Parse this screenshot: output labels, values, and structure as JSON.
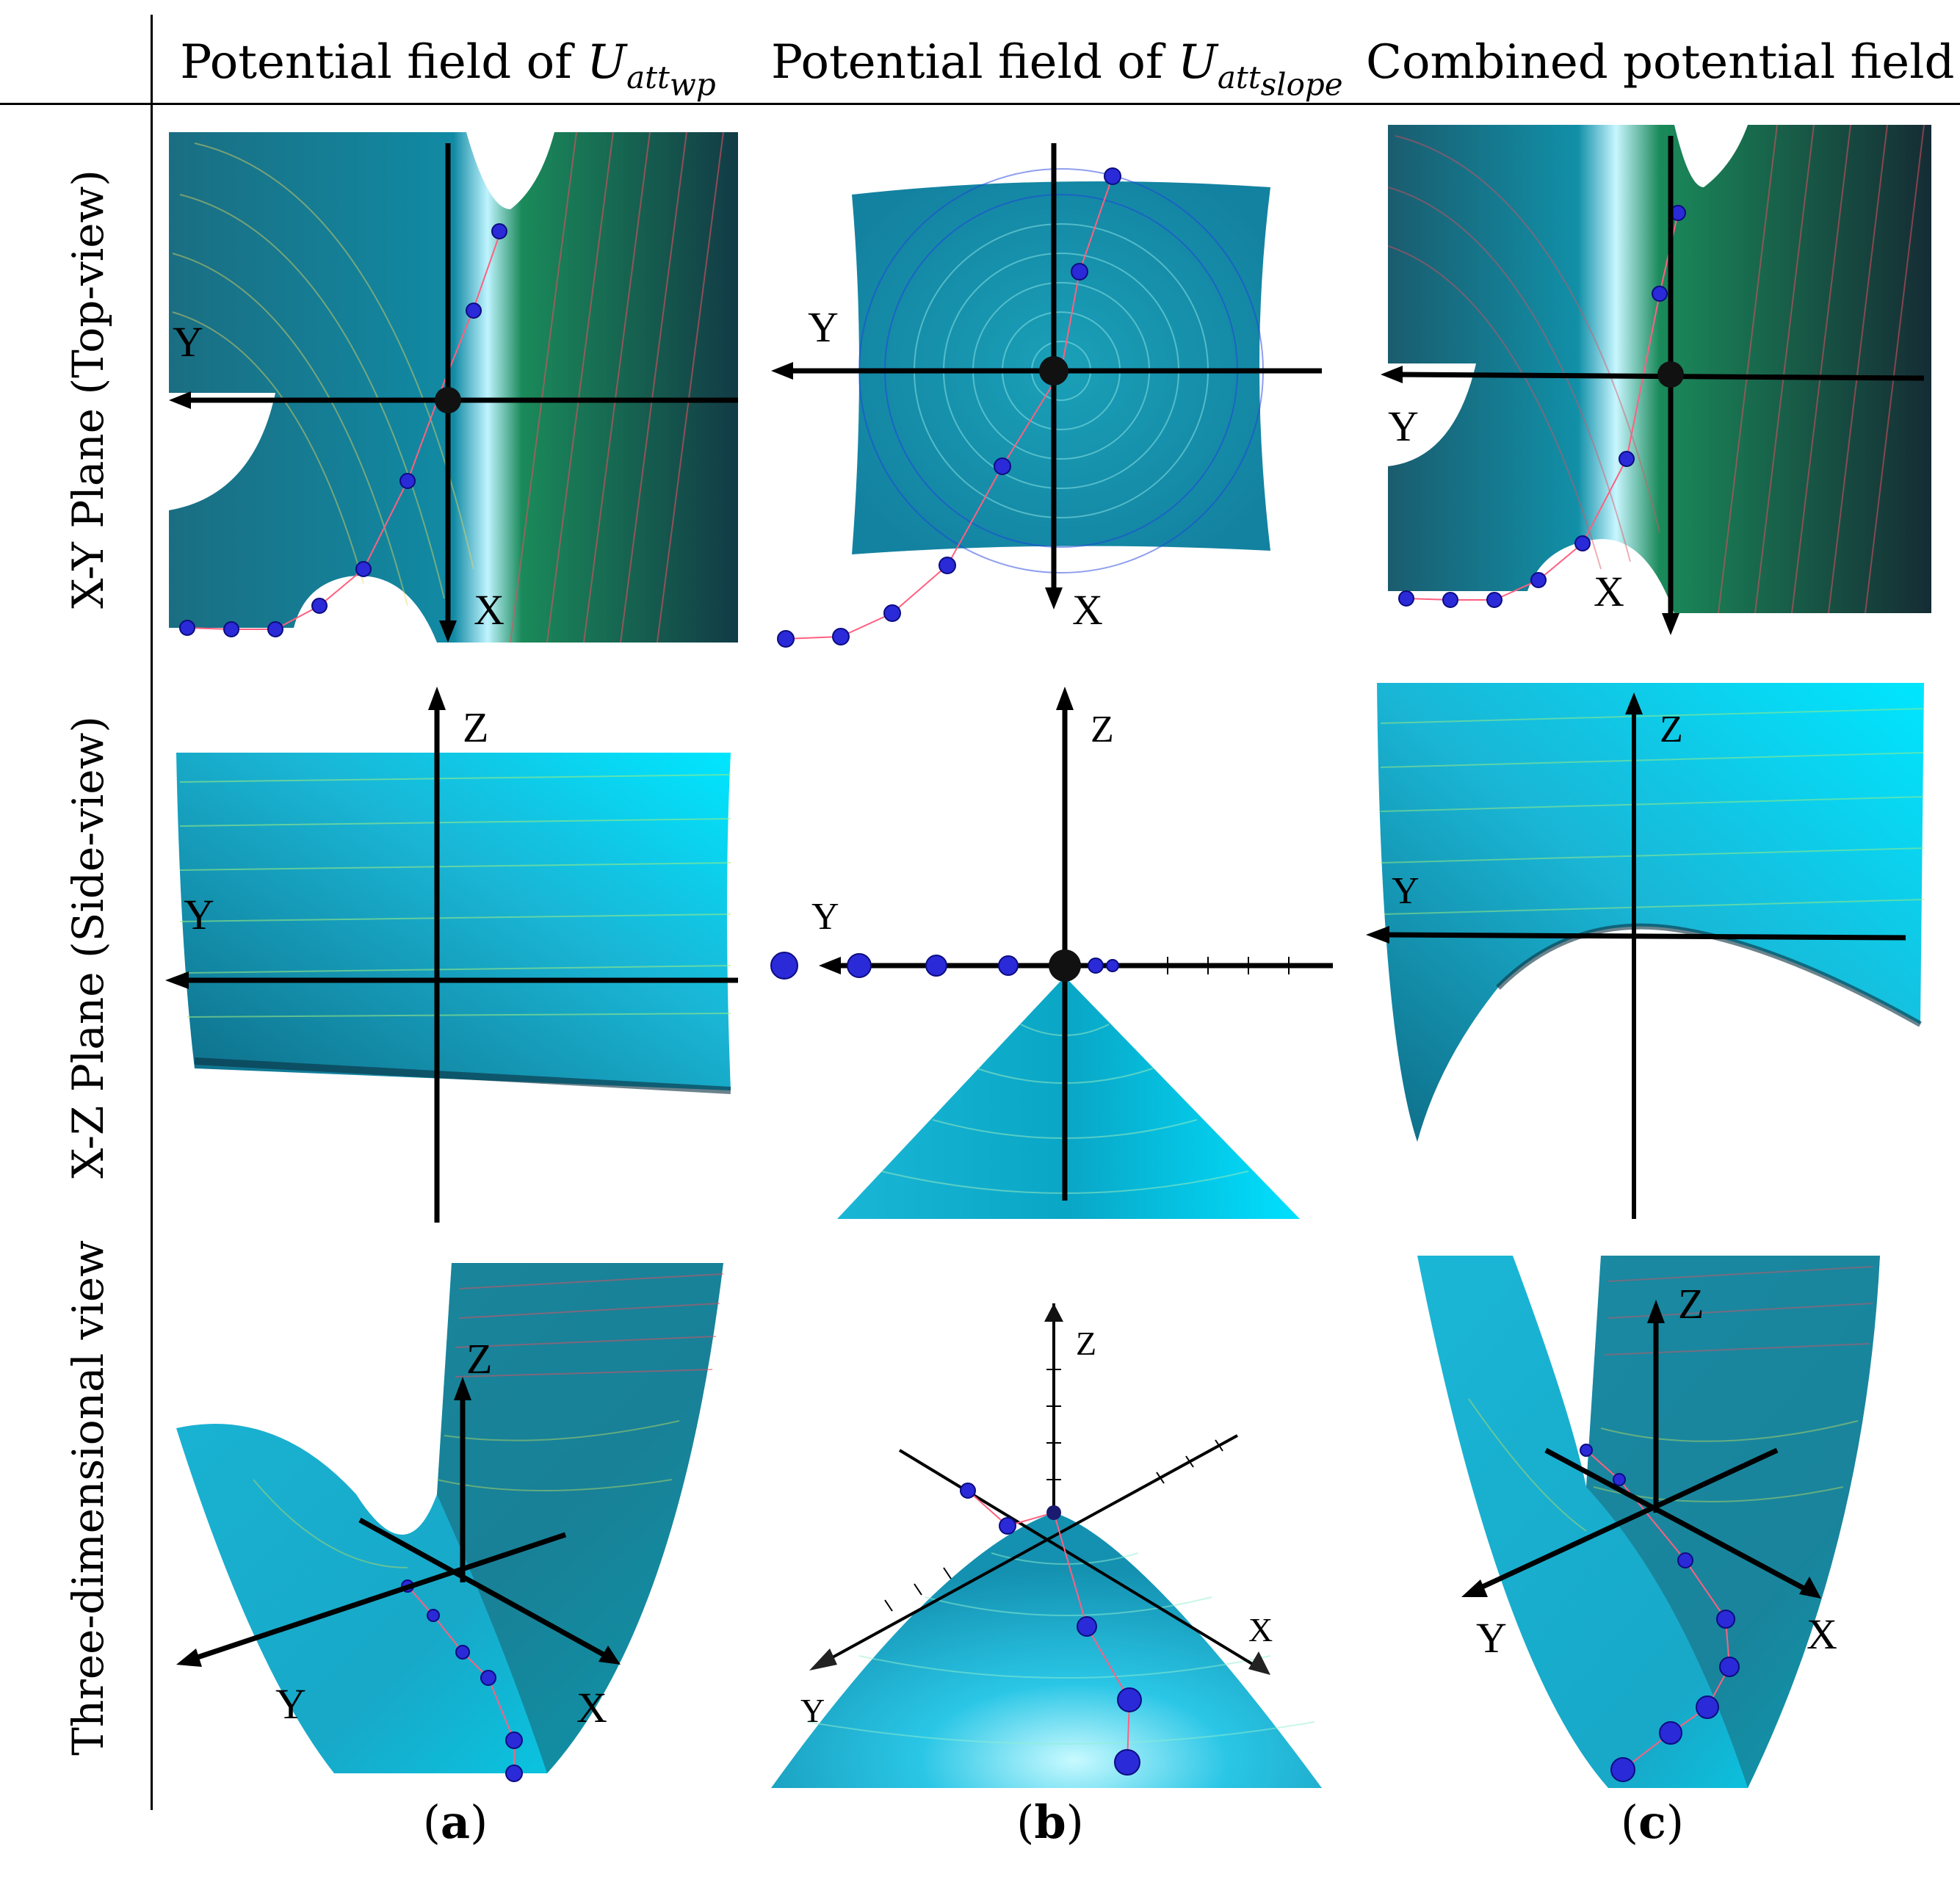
{
  "headers": {
    "col_a": {
      "prefix": "Potential field of",
      "symbol": "U",
      "subscript": "att",
      "subsub": "wp"
    },
    "col_b": {
      "prefix": "Potential field of",
      "symbol": "U",
      "subscript": "att",
      "subsub": "slope"
    },
    "col_c": {
      "title": "Combined potential field"
    }
  },
  "rows": {
    "row1": "X-Y Plane (Top-view)",
    "row2": "X-Z Plane (Side-view)",
    "row3": "Three-dimensional view"
  },
  "axes": {
    "x": "X",
    "y": "Y",
    "z": "Z"
  },
  "captions": {
    "a": {
      "open": "(",
      "letter": "a",
      "close": ")"
    },
    "b": {
      "open": "(",
      "letter": "b",
      "close": ")"
    },
    "c": {
      "open": "(",
      "letter": "c",
      "close": ")"
    }
  },
  "colors": {
    "surface": "#19b6d6",
    "surface_dark": "#0d4c5c",
    "ball": "#2020d8",
    "path": "#e04060"
  }
}
